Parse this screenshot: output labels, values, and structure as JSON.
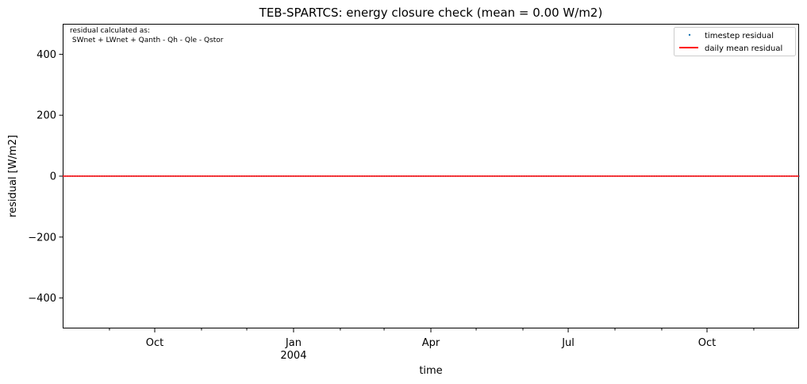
{
  "chart_data": {
    "type": "line",
    "title": "TEB-SPARTCS: energy closure check (mean = 0.00 W/m2)",
    "xlabel": "time",
    "ylabel": "residual [W/m2]",
    "xlim": [
      "2003-08-01",
      "2004-12-01"
    ],
    "ylim": [
      -500,
      500
    ],
    "y_ticks": [
      400,
      200,
      0,
      -200,
      -400
    ],
    "y_tick_labels": [
      "400",
      "200",
      "0",
      "−200",
      "−400"
    ],
    "x_major_ticks": [
      {
        "date": "2003-10-01",
        "label": "Oct",
        "sublabel": ""
      },
      {
        "date": "2004-01-01",
        "label": "Jan",
        "sublabel": "2004"
      },
      {
        "date": "2004-04-01",
        "label": "Apr",
        "sublabel": ""
      },
      {
        "date": "2004-07-01",
        "label": "Jul",
        "sublabel": ""
      },
      {
        "date": "2004-10-01",
        "label": "Oct",
        "sublabel": ""
      }
    ],
    "x_minor_ticks": [
      "2003-09-01",
      "2003-11-01",
      "2003-12-01",
      "2004-02-01",
      "2004-03-01",
      "2004-05-01",
      "2004-06-01",
      "2004-08-01",
      "2004-09-01",
      "2004-11-01"
    ],
    "grid": false,
    "legend_position": "top-right",
    "annotation": {
      "line1": "residual calculated as:",
      "line2": " SWnet + LWnet + Qanth - Qh - Qle - Qstor"
    },
    "series": [
      {
        "name": "timestep residual",
        "style": "points",
        "color": "#1f77b4",
        "x": [
          "2003-08-01",
          "2004-12-01"
        ],
        "y": [
          0.0,
          0.0
        ]
      },
      {
        "name": "daily mean residual",
        "style": "line",
        "color": "#ff0000",
        "x": [
          "2003-08-01",
          "2004-12-01"
        ],
        "y": [
          0.0,
          0.0
        ]
      }
    ]
  }
}
